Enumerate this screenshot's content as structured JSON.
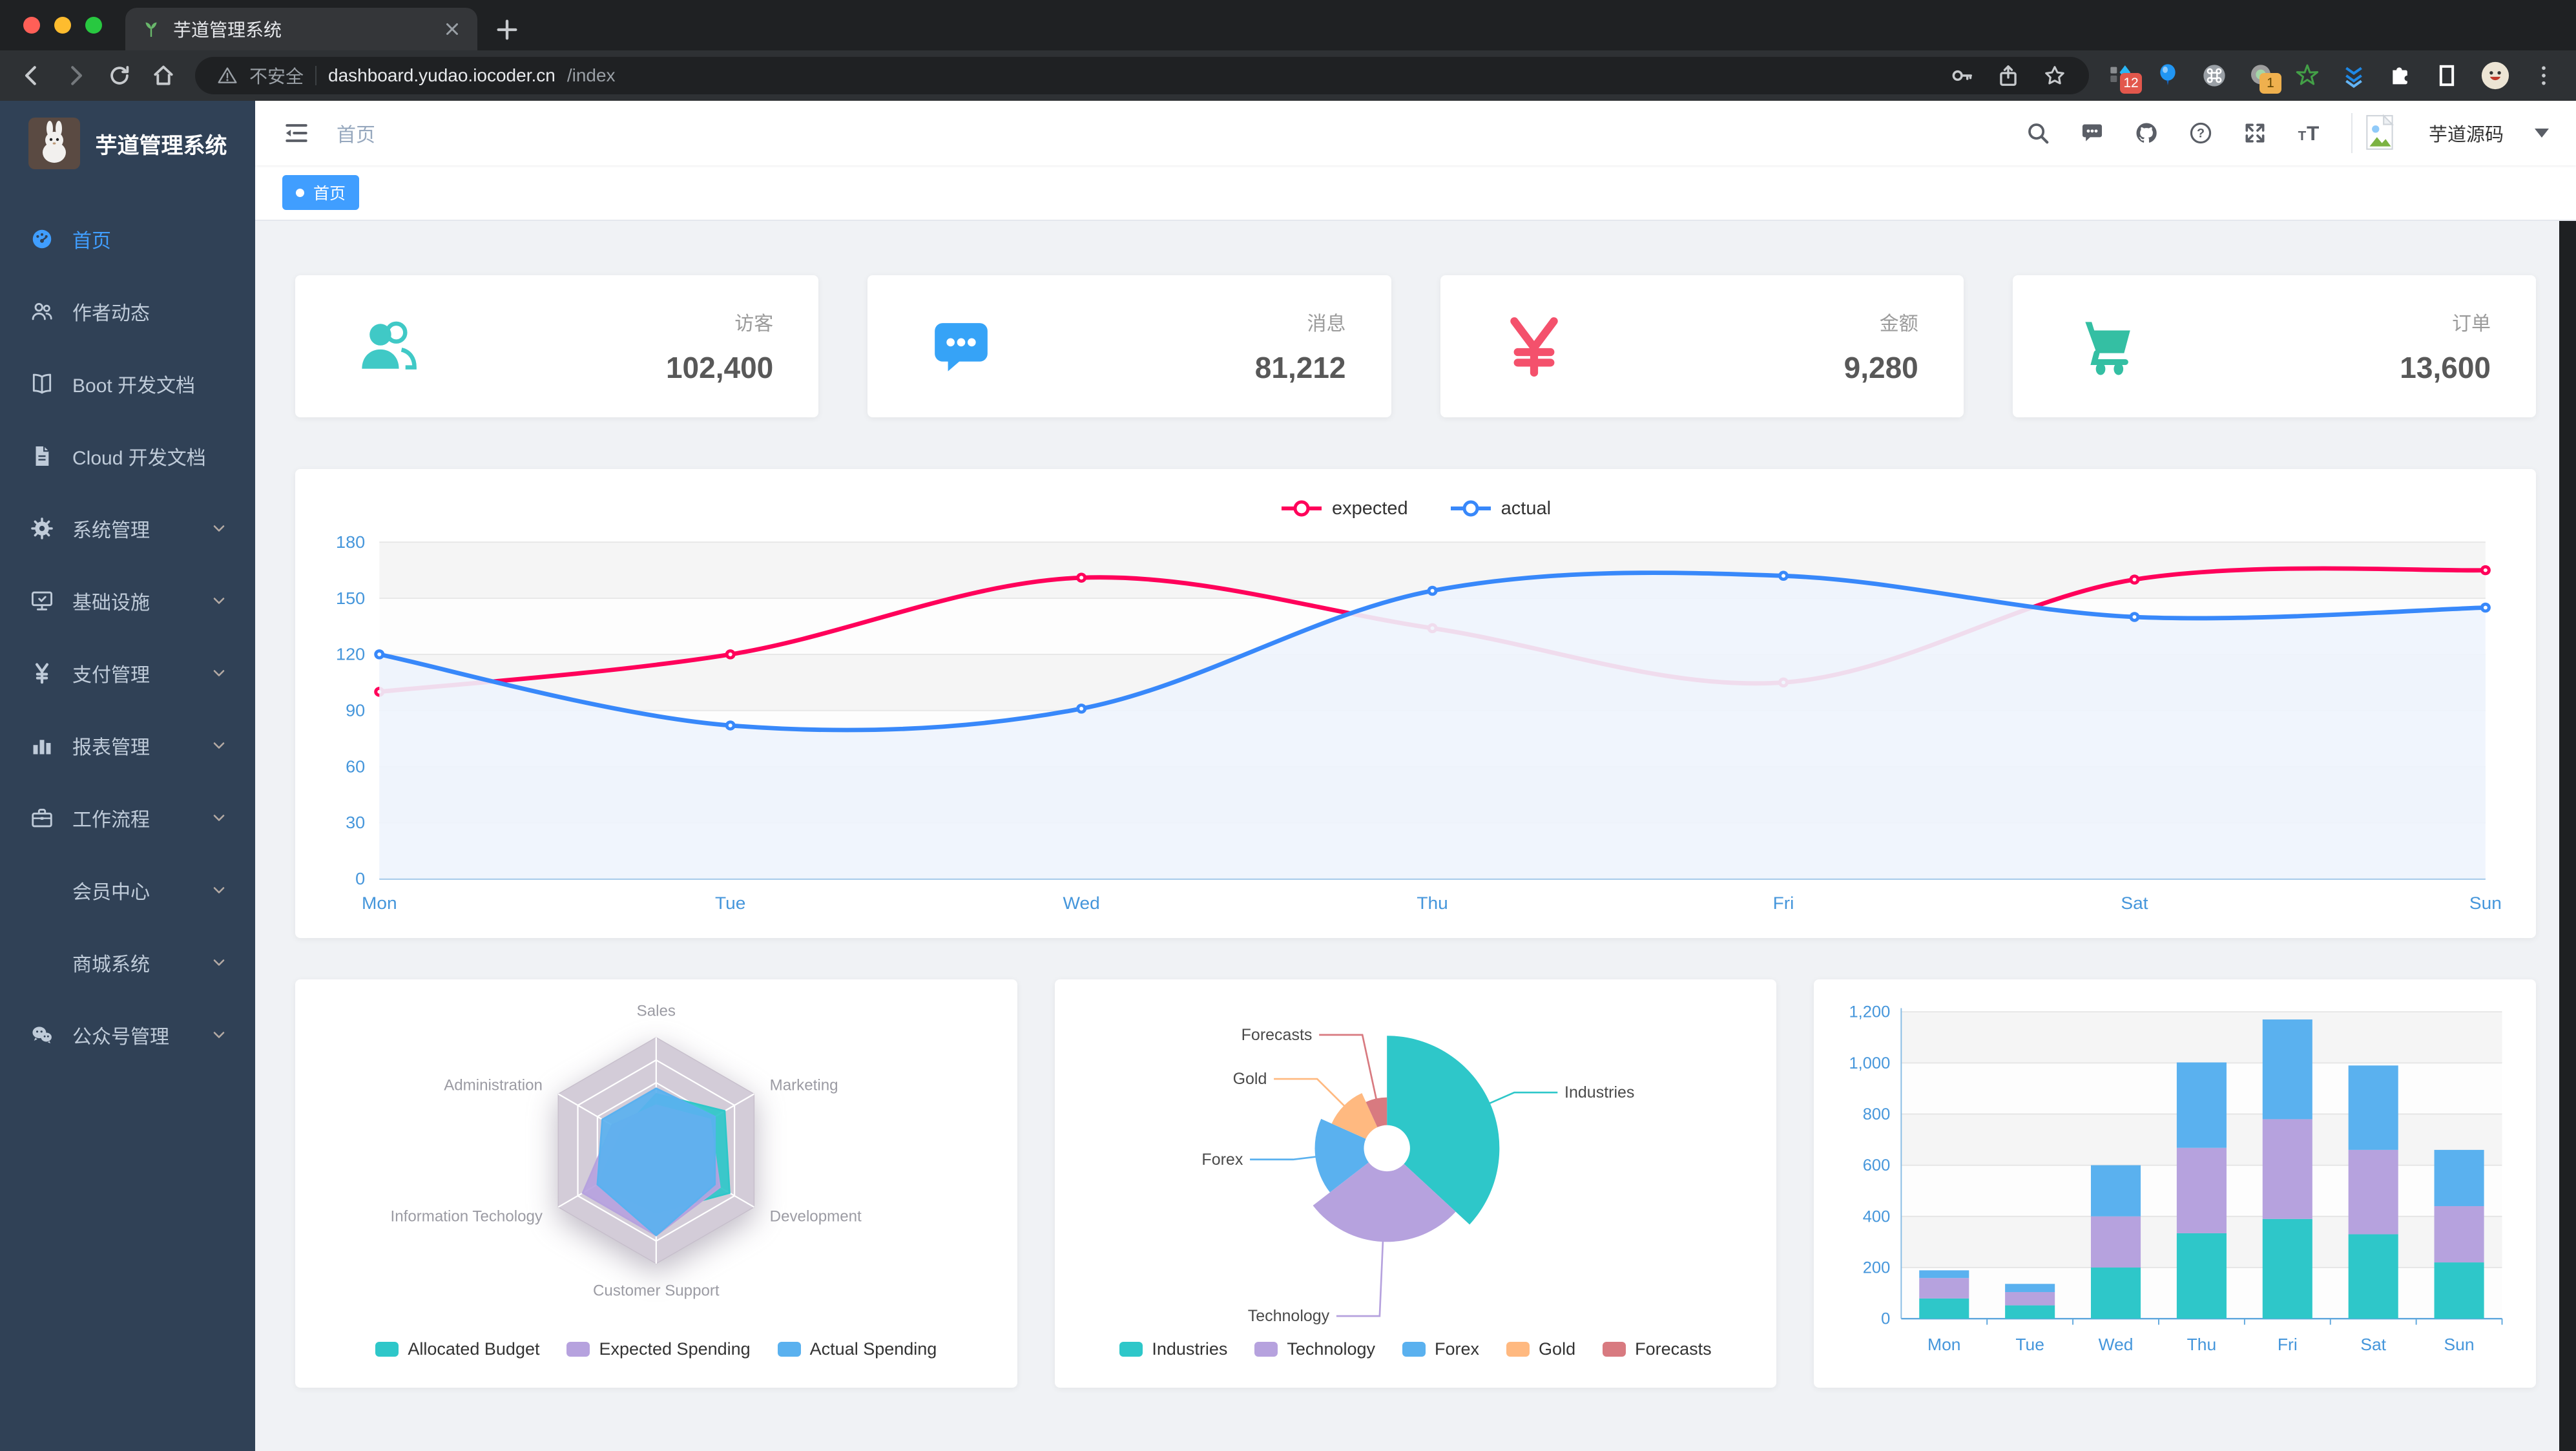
{
  "browser": {
    "tab_title": "芋道管理系统",
    "security_label": "不安全",
    "url_host": "dashboard.yudao.iocoder.cn",
    "url_path": "/index",
    "ext_badge_a": "12",
    "ext_badge_b": "1"
  },
  "sidebar": {
    "title": "芋道管理系统",
    "items": [
      {
        "id": "home",
        "label": "首页",
        "icon": "dashboard-icon",
        "active": true,
        "expandable": false
      },
      {
        "id": "author",
        "label": "作者动态",
        "icon": "people-icon",
        "active": false,
        "expandable": false
      },
      {
        "id": "boot-docs",
        "label": "Boot 开发文档",
        "icon": "book-icon",
        "active": false,
        "expandable": false
      },
      {
        "id": "cloud-docs",
        "label": "Cloud 开发文档",
        "icon": "document-icon",
        "active": false,
        "expandable": false
      },
      {
        "id": "system",
        "label": "系统管理",
        "icon": "gear-icon",
        "active": false,
        "expandable": true
      },
      {
        "id": "infra",
        "label": "基础设施",
        "icon": "monitor-icon",
        "active": false,
        "expandable": true
      },
      {
        "id": "payment",
        "label": "支付管理",
        "icon": "yen-icon",
        "active": false,
        "expandable": true
      },
      {
        "id": "report",
        "label": "报表管理",
        "icon": "bar-chart-icon",
        "active": false,
        "expandable": true
      },
      {
        "id": "workflow",
        "label": "工作流程",
        "icon": "briefcase-icon",
        "active": false,
        "expandable": true
      },
      {
        "id": "member",
        "label": "会员中心",
        "icon": null,
        "active": false,
        "expandable": true
      },
      {
        "id": "mall",
        "label": "商城系统",
        "icon": null,
        "active": false,
        "expandable": true
      },
      {
        "id": "wechat-mp",
        "label": "公众号管理",
        "icon": "wechat-icon",
        "active": false,
        "expandable": true
      }
    ]
  },
  "navbar": {
    "breadcrumb": "首页",
    "user_name": "芋道源码"
  },
  "tags": [
    {
      "label": "首页",
      "active": true
    }
  ],
  "stat_cards": [
    {
      "id": "visitors",
      "label": "访客",
      "value": "102,400",
      "icon": "peoples-icon",
      "color": "#40c9c6"
    },
    {
      "id": "messages",
      "label": "消息",
      "value": "81,212",
      "icon": "message-icon",
      "color": "#36a3f7"
    },
    {
      "id": "amount",
      "label": "金额",
      "value": "9,280",
      "icon": "money-icon",
      "color": "#f4516c"
    },
    {
      "id": "orders",
      "label": "订单",
      "value": "13,600",
      "icon": "shopping-icon",
      "color": "#34bfa3"
    }
  ],
  "chart_data": [
    {
      "type": "line",
      "categories": [
        "Mon",
        "Tue",
        "Wed",
        "Thu",
        "Fri",
        "Sat",
        "Sun"
      ],
      "series": [
        {
          "name": "expected",
          "color": "#ff005a",
          "values": [
            100,
            120,
            161,
            134,
            105,
            160,
            165
          ]
        },
        {
          "name": "actual",
          "color": "#3888fa",
          "values": [
            120,
            82,
            91,
            154,
            162,
            140,
            145
          ],
          "area": true,
          "area_color": "#eef4fd"
        }
      ],
      "ylim": [
        0,
        180
      ],
      "yticks": [
        0,
        30,
        60,
        90,
        120,
        150,
        180
      ],
      "xlabel": "",
      "ylabel": "",
      "grid": true,
      "legend_position": "top",
      "axis_label_color": "#4596db"
    },
    {
      "type": "radar",
      "indicators": [
        {
          "name": "Sales",
          "max": 10000
        },
        {
          "name": "Administration",
          "max": 20000
        },
        {
          "name": "Information Techology",
          "max": 20000
        },
        {
          "name": "Customer Support",
          "max": 20000
        },
        {
          "name": "Development",
          "max": 20000
        },
        {
          "name": "Marketing",
          "max": 20000
        }
      ],
      "series": [
        {
          "name": "Allocated Budget",
          "color": "#2ec7c9",
          "values": [
            5000,
            7000,
            12000,
            11000,
            15000,
            14000
          ]
        },
        {
          "name": "Expected Spending",
          "color": "#b6a2de",
          "values": [
            4000,
            9000,
            15000,
            15000,
            13000,
            11000
          ]
        },
        {
          "name": "Actual Spending",
          "color": "#5ab1ef",
          "values": [
            5500,
            11000,
            12000,
            15000,
            12000,
            12000
          ]
        }
      ],
      "legend_position": "bottom"
    },
    {
      "type": "pie",
      "rose": true,
      "slices": [
        {
          "name": "Industries",
          "value": 320,
          "color": "#2ec7c9"
        },
        {
          "name": "Technology",
          "value": 240,
          "color": "#b6a2de"
        },
        {
          "name": "Forex",
          "value": 149,
          "color": "#5ab1ef"
        },
        {
          "name": "Gold",
          "value": 100,
          "color": "#ffb980"
        },
        {
          "name": "Forecasts",
          "value": 59,
          "color": "#d87a80"
        }
      ],
      "legend_position": "bottom"
    },
    {
      "type": "bar",
      "stacked": true,
      "categories": [
        "Mon",
        "Tue",
        "Wed",
        "Thu",
        "Fri",
        "Sat",
        "Sun"
      ],
      "series": [
        {
          "color": "#2ec7c9",
          "values": [
            79,
            52,
            200,
            334,
            390,
            330,
            220
          ]
        },
        {
          "color": "#b6a2de",
          "values": [
            80,
            52,
            200,
            334,
            390,
            330,
            220
          ]
        },
        {
          "color": "#5ab1ef",
          "values": [
            30,
            32,
            200,
            334,
            390,
            330,
            220
          ]
        }
      ],
      "ylim": [
        0,
        1200
      ],
      "yticks": [
        0,
        200,
        400,
        600,
        800,
        1000,
        1200
      ],
      "grid": true,
      "axis_label_color": "#4596db"
    }
  ]
}
